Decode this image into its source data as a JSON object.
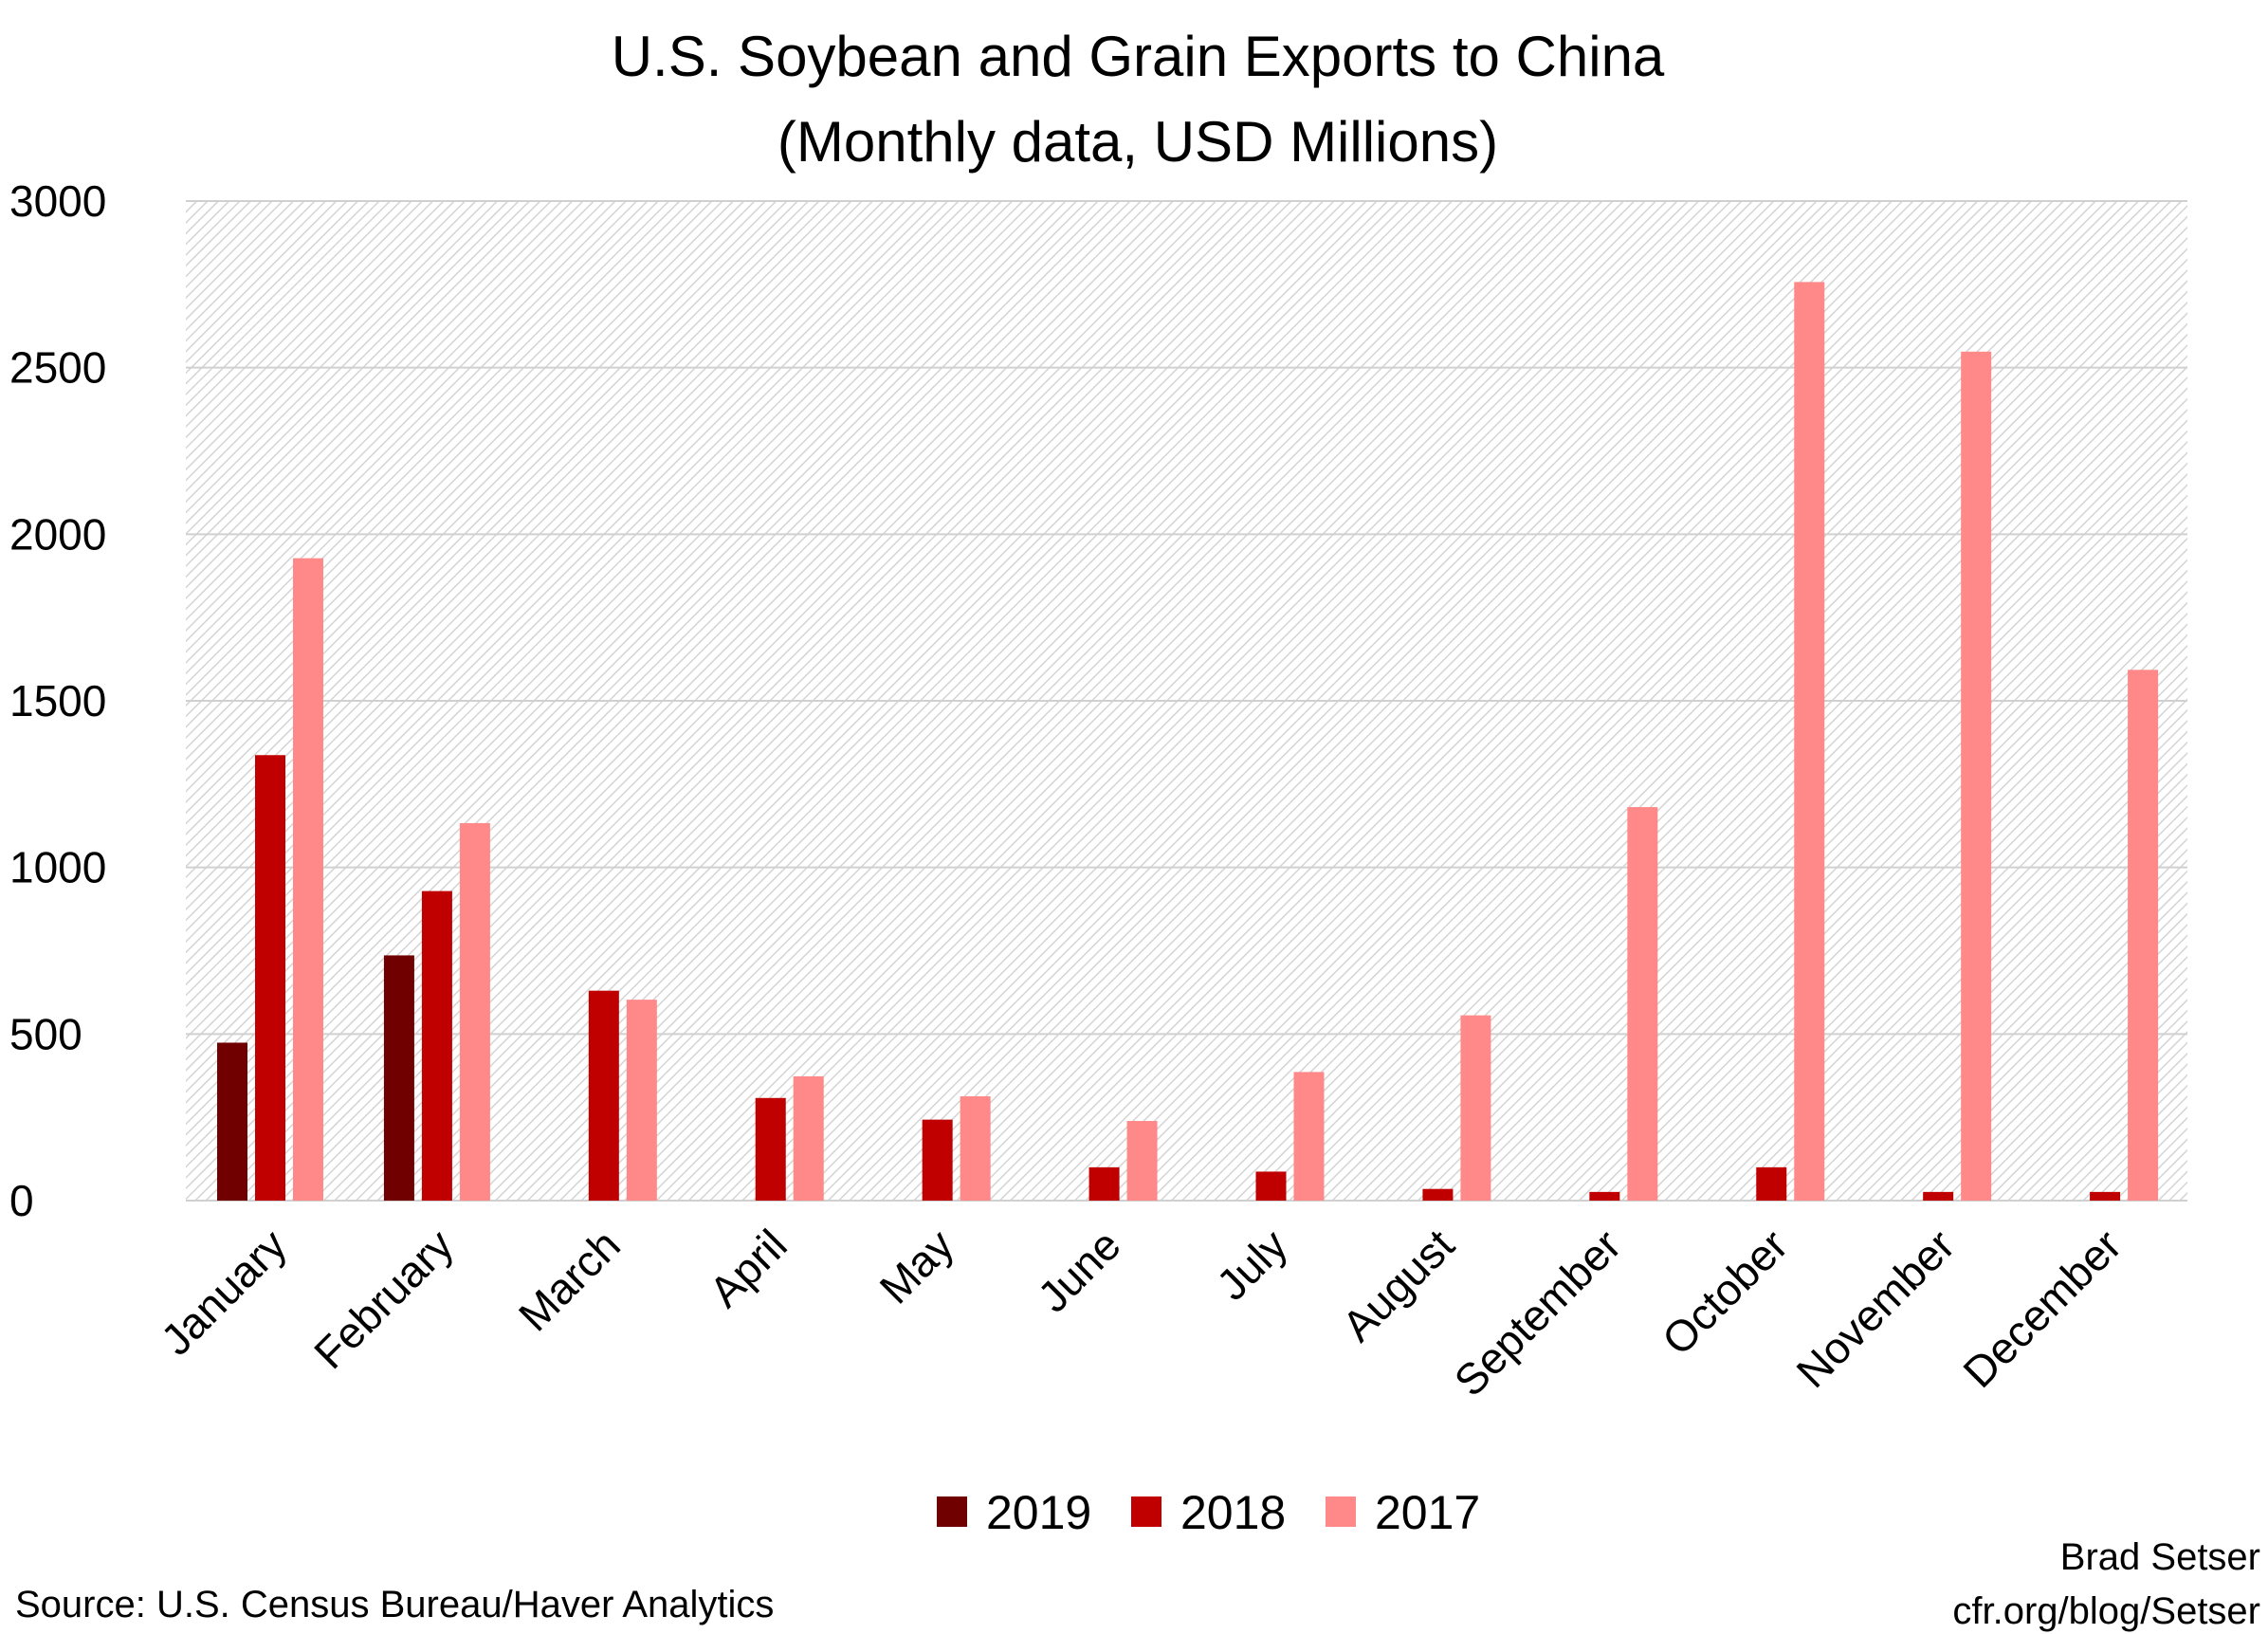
{
  "chart_data": {
    "type": "bar",
    "title": "U.S. Soybean and Grain Exports to China",
    "subtitle": "(Monthly data, USD Millions)",
    "xlabel": "",
    "ylabel": "",
    "ylim": [
      0,
      3000
    ],
    "yticks": [
      "0",
      "500",
      "1000",
      "1500",
      "2000",
      "2500",
      "3000"
    ],
    "grid": true,
    "legend_position": "bottom",
    "categories": [
      "January",
      "February",
      "March",
      "April",
      "May",
      "June",
      "July",
      "August",
      "September",
      "October",
      "November",
      "December"
    ],
    "series": [
      {
        "name": "2019",
        "color": "#700000",
        "values": [
          474,
          736,
          null,
          null,
          null,
          null,
          null,
          null,
          null,
          null,
          null,
          null
        ]
      },
      {
        "name": "2018",
        "color": "#c00000",
        "values": [
          1337,
          929,
          630,
          308,
          243,
          100,
          87,
          35,
          26,
          100,
          26,
          26
        ]
      },
      {
        "name": "2017",
        "color": "#ff8888",
        "values": [
          1928,
          1133,
          603,
          373,
          313,
          239,
          386,
          556,
          1181,
          2757,
          2548,
          1593
        ]
      }
    ]
  },
  "footer": {
    "source": "Source: U.S. Census Bureau/Haver Analytics",
    "author": "Brad Setser",
    "url": "cfr.org/blog/Setser"
  }
}
